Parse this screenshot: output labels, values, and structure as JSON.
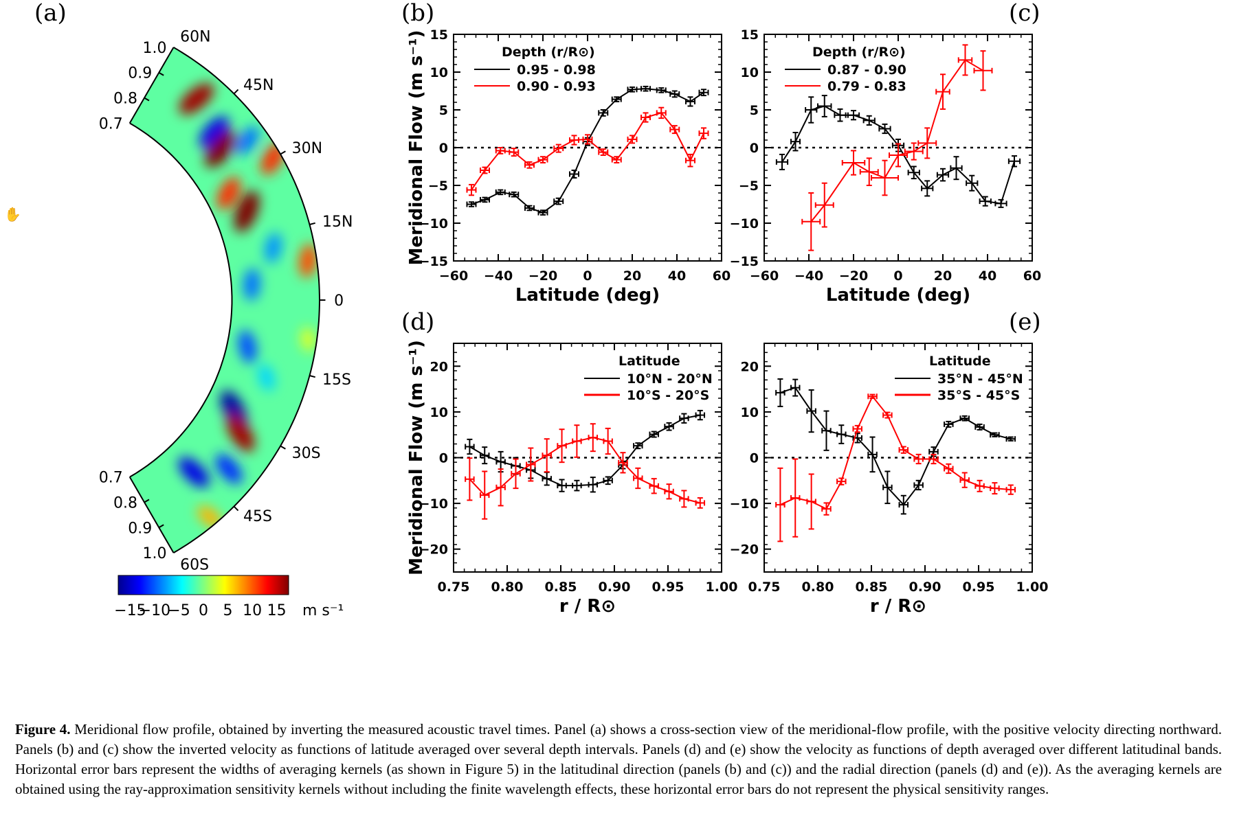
{
  "figure": {
    "panel_letters": [
      "(a)",
      "(b)",
      "(c)",
      "(d)",
      "(e)"
    ],
    "caption": {
      "label": "Figure 4.",
      "text": "Meridional flow profile, obtained by inverting the measured acoustic travel times. Panel (a) shows a cross-section view of the meridional-flow profile, with the positive velocity directing northward. Panels (b) and (c) show the inverted velocity as functions of latitude averaged over several depth intervals. Panels (d) and (e) show the velocity as functions of depth averaged over different latitudinal bands. Horizontal error bars represent the widths of averaging kernels (as shown in Figure 5) in the latitudinal direction (panels (b) and (c)) and the radial direction (panels (d) and (e)). As the averaging kernels are obtained using the ray-approximation sensitivity kernels without including the finite wavelength effects, these horizontal error bars do not represent the physical sensitivity ranges."
    },
    "cursor_icon": "hand-cursor-icon"
  },
  "chart_data": [
    {
      "panel": "(a)",
      "type": "heatmap",
      "geometry": "meridional cross-section, latitude 60S to 60N, radius 0.7 to 1.0",
      "latitude_labels": [
        "60N",
        "45N",
        "30N",
        "15N",
        "0",
        "15S",
        "30S",
        "45S",
        "60S"
      ],
      "radius_labels": [
        "1.0",
        "0.9",
        "0.8",
        "0.7"
      ],
      "colorbar": {
        "ticks": [
          "−15",
          "−10",
          "−5",
          "0",
          "5",
          "10",
          "15"
        ],
        "unit": "m s⁻¹",
        "range": [
          -15,
          15
        ],
        "colormap": "jet"
      },
      "features": [
        {
          "lat": 42,
          "r": 0.86,
          "v": -12
        },
        {
          "lat": 36,
          "r": 0.93,
          "v": -8
        },
        {
          "lat": 38,
          "r": 0.84,
          "v": 15
        },
        {
          "lat": 50,
          "r": 0.9,
          "v": 14
        },
        {
          "lat": 22,
          "r": 0.81,
          "v": 15
        },
        {
          "lat": 28,
          "r": 0.78,
          "v": 10
        },
        {
          "lat": 12,
          "r": 0.86,
          "v": -7
        },
        {
          "lat": 4,
          "r": 0.77,
          "v": -8
        },
        {
          "lat": -12,
          "r": 0.77,
          "v": -9
        },
        {
          "lat": -18,
          "r": 0.86,
          "v": -5
        },
        {
          "lat": -28,
          "r": 0.8,
          "v": -14
        },
        {
          "lat": -32,
          "r": 0.86,
          "v": 14
        },
        {
          "lat": -40,
          "r": 0.9,
          "v": -10
        },
        {
          "lat": -46,
          "r": 0.82,
          "v": -12
        },
        {
          "lat": 8,
          "r": 0.97,
          "v": 9
        },
        {
          "lat": -8,
          "r": 0.97,
          "v": 3
        },
        {
          "lat": 30,
          "r": 0.97,
          "v": 10
        },
        {
          "lat": -50,
          "r": 0.97,
          "v": 6
        }
      ]
    },
    {
      "panel": "(b)",
      "type": "line",
      "xlabel": "Latitude (deg)",
      "ylabel": "Meridional Flow (m s⁻¹)",
      "xlim": [
        -60,
        60
      ],
      "ylim": [
        -15,
        15
      ],
      "xticks": [
        -60,
        -40,
        -20,
        0,
        20,
        40,
        60
      ],
      "yticks": [
        -15,
        -10,
        -5,
        0,
        5,
        10,
        15
      ],
      "legend_title": "Depth (r/R⊙)",
      "legend_position": "top-left",
      "zero_line": true,
      "series": [
        {
          "name": "0.95 - 0.98",
          "color": "#000000",
          "x": [
            -52,
            -46,
            -39,
            -33,
            -26,
            -20,
            -13,
            -6,
            0,
            7,
            13,
            20,
            26,
            33,
            39,
            46,
            52
          ],
          "y": [
            -7.5,
            -6.9,
            -5.9,
            -6.2,
            -8.0,
            -8.6,
            -7.1,
            -3.5,
            0.8,
            4.6,
            6.4,
            7.7,
            7.8,
            7.6,
            7.1,
            6.1,
            7.3
          ],
          "xerr": [
            2,
            2,
            2,
            2,
            2,
            2,
            2,
            2,
            2,
            2,
            2,
            2,
            2,
            2,
            2,
            2,
            2
          ],
          "yerr": [
            0.3,
            0.3,
            0.3,
            0.3,
            0.3,
            0.3,
            0.4,
            0.5,
            0.5,
            0.4,
            0.3,
            0.3,
            0.3,
            0.3,
            0.4,
            0.6,
            0.4
          ]
        },
        {
          "name": "0.90 - 0.93",
          "color": "#ff0000",
          "x": [
            -52,
            -46,
            -39,
            -33,
            -26,
            -20,
            -13,
            -6,
            0,
            7,
            13,
            20,
            26,
            33,
            39,
            46,
            52
          ],
          "y": [
            -5.6,
            -3.0,
            -0.4,
            -0.6,
            -2.3,
            -1.6,
            -0.1,
            1.0,
            1.1,
            -0.6,
            -1.6,
            1.1,
            4.0,
            4.6,
            2.4,
            -1.7,
            1.9
          ],
          "xerr": [
            2,
            2,
            2,
            2,
            2,
            2,
            2,
            2,
            2,
            2,
            2,
            2,
            2,
            2,
            2,
            2,
            2
          ],
          "yerr": [
            0.7,
            0.4,
            0.4,
            0.5,
            0.4,
            0.4,
            0.5,
            0.6,
            0.6,
            0.4,
            0.4,
            0.5,
            0.6,
            0.7,
            0.5,
            0.8,
            0.7
          ]
        }
      ]
    },
    {
      "panel": "(c)",
      "type": "line",
      "xlabel": "Latitude (deg)",
      "ylabel": "",
      "xlim": [
        -60,
        60
      ],
      "ylim": [
        -15,
        15
      ],
      "xticks": [
        -60,
        -40,
        -20,
        0,
        20,
        40,
        60
      ],
      "yticks": [
        -15,
        -10,
        -5,
        0,
        5,
        10,
        15
      ],
      "legend_title": "Depth (r/R⊙)",
      "legend_position": "top-left",
      "zero_line": true,
      "series": [
        {
          "name": "0.87 - 0.90",
          "color": "#000000",
          "x": [
            -52,
            -46,
            -39,
            -33,
            -26,
            -20,
            -13,
            -6,
            0,
            7,
            13,
            20,
            26,
            33,
            39,
            46,
            52
          ],
          "y": [
            -1.9,
            0.8,
            5.0,
            5.5,
            4.3,
            4.3,
            3.6,
            2.5,
            0.3,
            -3.3,
            -5.4,
            -3.6,
            -2.7,
            -4.7,
            -7.1,
            -7.4,
            -1.8
          ],
          "xerr": [
            2.5,
            2,
            2.5,
            3,
            2.5,
            2.5,
            2.5,
            2.5,
            2.5,
            2.5,
            2.5,
            2.5,
            2.5,
            2.5,
            2.5,
            2.5,
            2.5
          ],
          "yerr": [
            1.0,
            1.2,
            1.7,
            1.4,
            0.8,
            0.6,
            0.6,
            0.6,
            0.8,
            0.8,
            1.0,
            0.8,
            1.5,
            1.0,
            0.6,
            0.5,
            0.7
          ]
        },
        {
          "name": "0.79 - 0.83",
          "color": "#ff0000",
          "x": [
            -39,
            -33,
            -20,
            -13,
            -6,
            0,
            7,
            13,
            20,
            30,
            38
          ],
          "y": [
            -9.8,
            -7.6,
            -2.0,
            -3.2,
            -4.0,
            -1.0,
            -0.5,
            0.6,
            7.4,
            11.6,
            10.2
          ],
          "xerr": [
            4,
            4,
            5,
            4,
            6,
            4,
            4,
            4,
            3,
            3,
            4
          ],
          "yerr": [
            3.8,
            2.9,
            1.6,
            1.8,
            2.3,
            1.5,
            1.1,
            2.0,
            2.3,
            2.0,
            2.6
          ]
        }
      ]
    },
    {
      "panel": "(d)",
      "type": "line",
      "xlabel": "r / R⊙",
      "ylabel": "Meridional Flow (m s⁻¹)",
      "xlim": [
        0.75,
        1.0
      ],
      "ylim": [
        -25,
        25
      ],
      "xticks": [
        "0.75",
        "0.80",
        "0.85",
        "0.90",
        "0.95",
        "1.00"
      ],
      "yticks": [
        -20,
        -10,
        0,
        10,
        20
      ],
      "legend_title": "Latitude",
      "legend_position": "top-right",
      "zero_line": true,
      "series": [
        {
          "name": "10°N - 20°N",
          "color": "#000000",
          "x": [
            0.765,
            0.779,
            0.794,
            0.808,
            0.822,
            0.837,
            0.851,
            0.865,
            0.88,
            0.894,
            0.908,
            0.922,
            0.937,
            0.951,
            0.965,
            0.98
          ],
          "y": [
            2.4,
            0.5,
            -0.9,
            -1.8,
            -2.7,
            -4.6,
            -6.1,
            -6.1,
            -5.9,
            -5.0,
            -1.6,
            2.6,
            5.1,
            6.8,
            8.6,
            9.3
          ],
          "xerr": [
            0.004,
            0.004,
            0.004,
            0.004,
            0.004,
            0.004,
            0.004,
            0.004,
            0.004,
            0.004,
            0.004,
            0.004,
            0.004,
            0.004,
            0.004,
            0.004
          ],
          "yerr": [
            1.6,
            1.8,
            2.2,
            1.8,
            1.8,
            1.4,
            1.3,
            1.1,
            1.6,
            0.8,
            0.8,
            0.6,
            0.6,
            0.8,
            1.0,
            1.0
          ]
        },
        {
          "name": "10°S - 20°S",
          "color": "#ff0000",
          "x": [
            0.765,
            0.779,
            0.794,
            0.808,
            0.822,
            0.837,
            0.851,
            0.865,
            0.88,
            0.894,
            0.908,
            0.922,
            0.937,
            0.951,
            0.965,
            0.98
          ],
          "y": [
            -4.7,
            -8.2,
            -6.5,
            -3.5,
            -1.5,
            0.5,
            2.6,
            3.6,
            4.4,
            3.6,
            -1.1,
            -4.5,
            -6.2,
            -7.4,
            -9.0,
            -9.9
          ],
          "xerr": [
            0.004,
            0.004,
            0.004,
            0.004,
            0.004,
            0.004,
            0.004,
            0.004,
            0.004,
            0.004,
            0.004,
            0.004,
            0.004,
            0.004,
            0.004,
            0.004
          ],
          "yerr": [
            4.6,
            5.2,
            4.0,
            3.2,
            3.6,
            3.6,
            3.6,
            3.5,
            3.0,
            2.8,
            2.2,
            2.2,
            1.6,
            1.6,
            1.8,
            1.1
          ]
        }
      ]
    },
    {
      "panel": "(e)",
      "type": "line",
      "xlabel": "r / R⊙",
      "ylabel": "",
      "xlim": [
        0.75,
        1.0
      ],
      "ylim": [
        -25,
        25
      ],
      "xticks": [
        "0.75",
        "0.80",
        "0.85",
        "0.90",
        "0.95",
        "1.00"
      ],
      "yticks": [
        -20,
        -10,
        0,
        10,
        20
      ],
      "legend_title": "Latitude",
      "legend_position": "top-right",
      "zero_line": true,
      "series": [
        {
          "name": "35°N - 45°N",
          "color": "#000000",
          "x": [
            0.765,
            0.779,
            0.794,
            0.808,
            0.822,
            0.837,
            0.851,
            0.865,
            0.88,
            0.894,
            0.908,
            0.922,
            0.937,
            0.951,
            0.965,
            0.98
          ],
          "y": [
            14.2,
            15.3,
            10.2,
            5.9,
            5.1,
            4.3,
            0.7,
            -6.5,
            -10.3,
            -6.0,
            1.3,
            7.3,
            8.6,
            6.7,
            5.0,
            4.1
          ],
          "xerr": [
            0.004,
            0.004,
            0.004,
            0.004,
            0.004,
            0.004,
            0.004,
            0.004,
            0.004,
            0.004,
            0.004,
            0.004,
            0.004,
            0.004,
            0.004,
            0.004
          ],
          "yerr": [
            3.0,
            1.8,
            4.6,
            4.3,
            2.0,
            1.0,
            3.8,
            3.5,
            2.0,
            1.0,
            1.0,
            0.6,
            0.5,
            0.6,
            0.4,
            0.4
          ]
        },
        {
          "name": "35°S - 45°S",
          "color": "#ff0000",
          "x": [
            0.765,
            0.779,
            0.794,
            0.808,
            0.822,
            0.837,
            0.851,
            0.865,
            0.88,
            0.894,
            0.908,
            0.922,
            0.937,
            0.951,
            0.965,
            0.98
          ],
          "y": [
            -10.3,
            -8.8,
            -9.6,
            -11.2,
            -5.2,
            6.3,
            13.4,
            9.3,
            1.7,
            -0.3,
            -0.3,
            -2.4,
            -4.9,
            -6.2,
            -6.7,
            -7.0
          ],
          "xerr": [
            0.004,
            0.004,
            0.004,
            0.004,
            0.004,
            0.004,
            0.004,
            0.004,
            0.004,
            0.004,
            0.004,
            0.004,
            0.004,
            0.004,
            0.004,
            0.004
          ],
          "yerr": [
            8.0,
            8.5,
            6.0,
            1.3,
            0.7,
            0.7,
            0.4,
            0.6,
            0.7,
            1.0,
            1.0,
            1.0,
            1.6,
            1.2,
            1.2,
            1.0
          ]
        }
      ]
    }
  ]
}
